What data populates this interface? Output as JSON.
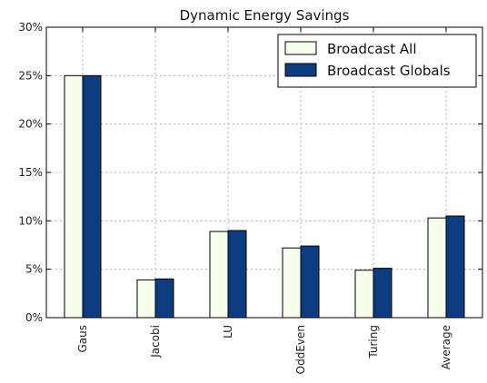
{
  "chart_data": {
    "type": "bar",
    "title": "Dynamic Energy Savings",
    "xlabel": "",
    "ylabel": "",
    "categories": [
      "Gaus",
      "Jacobi",
      "LU",
      "OddEven",
      "Turing",
      "Average"
    ],
    "series": [
      {
        "name": "Broadcast All",
        "values": [
          25.0,
          3.9,
          8.9,
          7.2,
          4.9,
          10.3
        ],
        "color": "#f5fdeb"
      },
      {
        "name": "Broadcast Globals",
        "values": [
          25.0,
          4.0,
          9.0,
          7.4,
          5.1,
          10.5
        ],
        "color": "#0b3d80"
      }
    ],
    "ylim": [
      0,
      30
    ],
    "yticks": [
      0,
      5,
      10,
      15,
      20,
      25,
      30
    ],
    "ytick_labels": [
      "0%",
      "5%",
      "10%",
      "15%",
      "20%",
      "25%",
      "30%"
    ],
    "grid": true,
    "legend_position": "top-right"
  }
}
